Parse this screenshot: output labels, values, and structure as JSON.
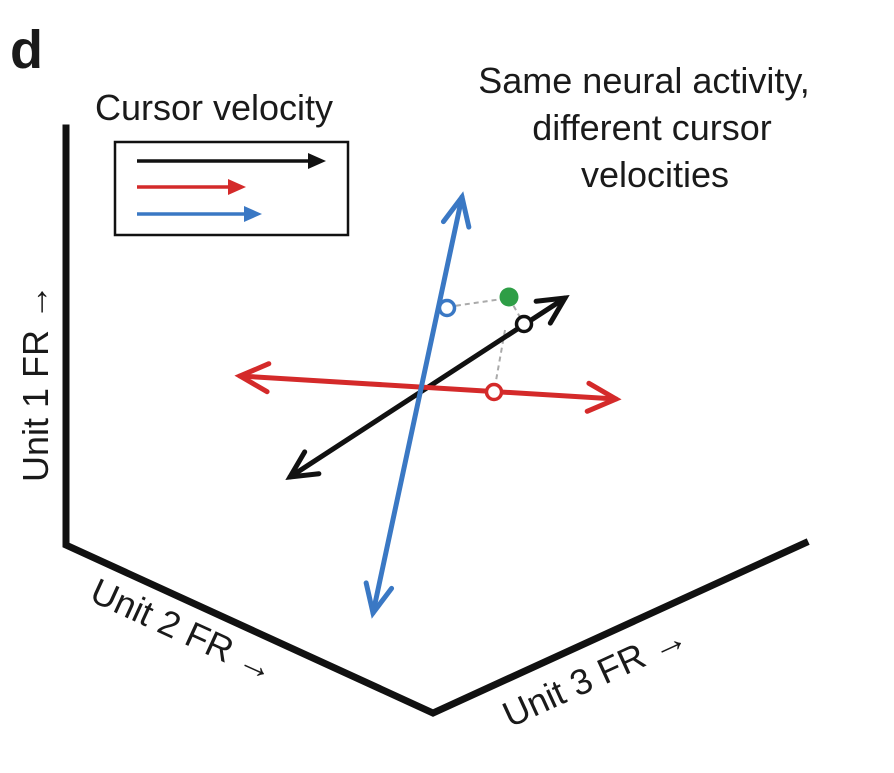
{
  "panel_label": "d",
  "legend": {
    "title": "Cursor velocity",
    "entries": [
      {
        "color": "#111111"
      },
      {
        "color": "#d42a2a"
      },
      {
        "color": "#3a78c4"
      }
    ]
  },
  "annotation": {
    "lines": [
      "Same neural activity,",
      "different cursor",
      "velocities"
    ]
  },
  "axes": {
    "unit1_label": "Unit 1 FR →",
    "unit2_label": "Unit 2 FR →",
    "unit3_label": "Unit 3 FR →"
  },
  "colors": {
    "black": "#111111",
    "red": "#d42a2a",
    "blue": "#3a78c4",
    "green": "#2e9e46",
    "guide": "#aaaaaa"
  }
}
